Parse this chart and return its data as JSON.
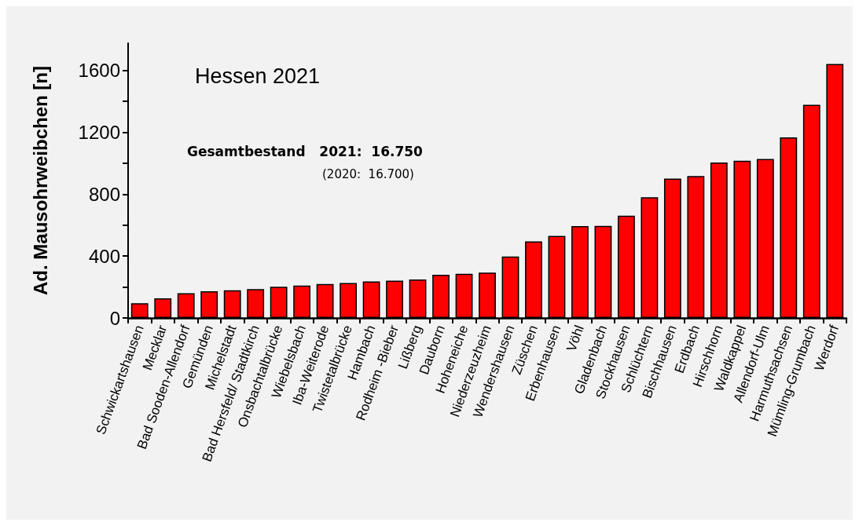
{
  "chart_data": {
    "type": "bar",
    "ylabel": "Ad. Mausohrweibchen [n]",
    "annotations": [
      "Hessen 2021",
      "Gesamtbestand   2021:  16.750",
      "(2020:  16.700)"
    ],
    "categories": [
      "Schwickartshausen",
      "Mecklar",
      "Bad Sooden-Allendorf",
      "Gemünden",
      "Michelstadt",
      "Bad Hersfeld/ Stadtkirch",
      "Onsbachtalbrücke",
      "Wiebelsbach",
      "Iba-Weiterode",
      "Twistetalbrücke",
      "Hambach",
      "Rodheim -Bieber",
      "Lißberg",
      "Dauborn",
      "Hoheneiche",
      "Niederzeuzheim",
      "Wendershausen",
      "Züschen",
      "Erbenhausen",
      "Vöhl",
      "Gladenbach",
      "Stockhausen",
      "Schlüchtern",
      "Bischhausen",
      "Erdbach",
      "Hirschhorn",
      "Waldkappel",
      "Allendorf-Ulm",
      "Harmuthsachsen",
      "Mümling-Grumbach",
      "Werdorf"
    ],
    "values": [
      95,
      127,
      160,
      173,
      179,
      186,
      201,
      209,
      219,
      226,
      236,
      241,
      248,
      279,
      285,
      293,
      397,
      495,
      530,
      593,
      595,
      661,
      780,
      900,
      917,
      1004,
      1015,
      1027,
      1167,
      1377,
      1640
    ],
    "color": "#ff0000",
    "ylim": [
      0,
      1775
    ],
    "yticks": [
      0,
      {
        "value": 200,
        "label": null
      },
      400,
      {
        "value": 600,
        "label": null
      },
      800,
      {
        "value": 1000,
        "label": null
      },
      1200,
      {
        "value": 1400,
        "label": null
      },
      1600
    ],
    "grid": false
  }
}
